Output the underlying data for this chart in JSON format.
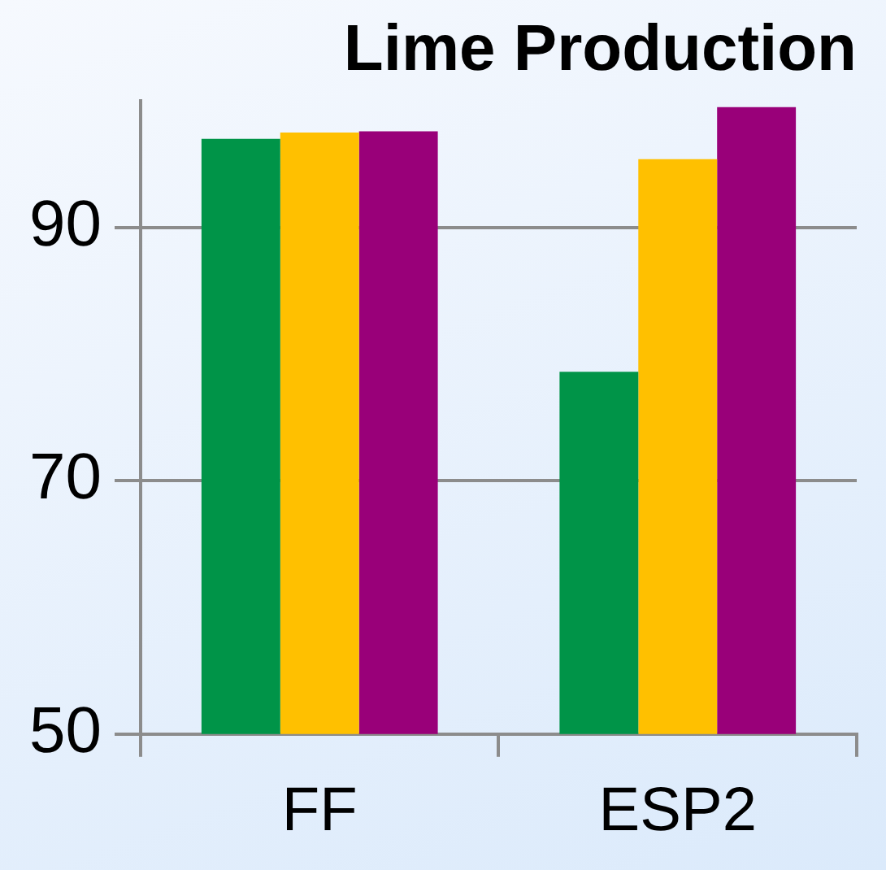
{
  "chart_data": {
    "type": "bar",
    "title": "Lime Production",
    "categories": [
      "FF",
      "ESP2"
    ],
    "series": [
      {
        "color": "#009448",
        "values": [
          97.0,
          78.6
        ]
      },
      {
        "color": "#ffc000",
        "values": [
          97.5,
          95.4
        ]
      },
      {
        "color": "#990079",
        "values": [
          97.6,
          99.5
        ]
      }
    ],
    "ylim": [
      50,
      100
    ],
    "yticks": [
      50,
      70,
      90
    ],
    "grid": "y"
  }
}
